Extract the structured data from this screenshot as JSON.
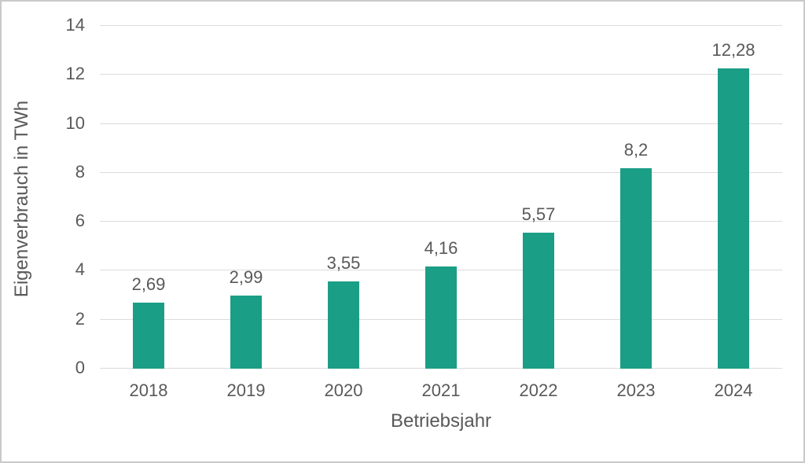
{
  "chart_data": {
    "type": "bar",
    "title": "",
    "categories": [
      "2018",
      "2019",
      "2020",
      "2021",
      "2022",
      "2023",
      "2024"
    ],
    "values": [
      2.69,
      2.99,
      3.55,
      4.16,
      5.57,
      8.2,
      12.28
    ],
    "value_labels": [
      "2,69",
      "2,99",
      "3,55",
      "4,16",
      "5,57",
      "8,2",
      "12,28"
    ],
    "xlabel": "Betriebsjahr",
    "ylabel": "Eigenverbrauch in TWh",
    "ylim": [
      0,
      14
    ],
    "yticks": [
      0,
      2,
      4,
      6,
      8,
      10,
      12,
      14
    ],
    "ytick_labels": [
      "0",
      "2",
      "4",
      "6",
      "8",
      "10",
      "12",
      "14"
    ],
    "grid": "horizontal",
    "legend": "none",
    "colors": {
      "bar": "#1b9e86",
      "text": "#595959",
      "gridline": "#dbdbdb",
      "frame_border": "#c9c9c9",
      "background": "#ffffff"
    }
  }
}
